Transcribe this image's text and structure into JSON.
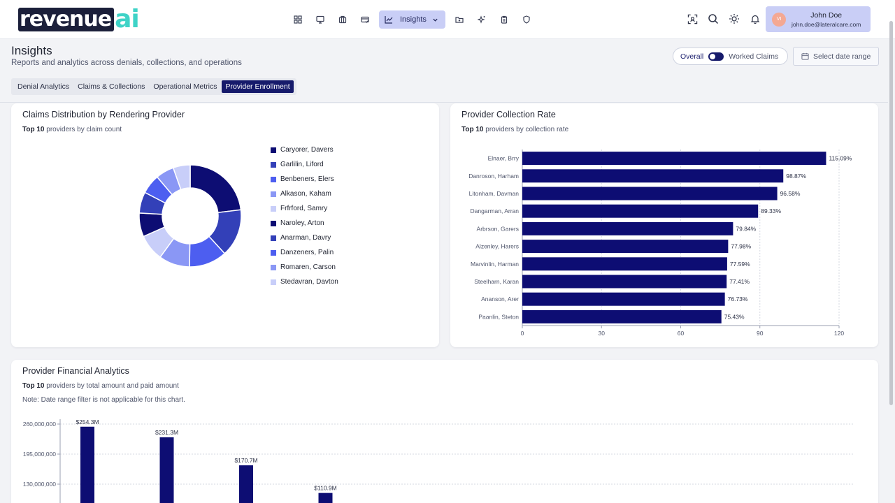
{
  "brand": {
    "logo_main": "revenue",
    "logo_accent": "ai"
  },
  "nav": {
    "icons": [
      "grid-icon",
      "monitor-icon",
      "briefcase-icon",
      "card-icon"
    ],
    "active_label": "Insights",
    "icons_after": [
      "folder-icon",
      "sparkle-icon",
      "clipboard-icon",
      "shield-icon"
    ]
  },
  "tools": [
    "scan-icon",
    "search-icon",
    "sun-icon",
    "bell-icon"
  ],
  "user": {
    "initials": "VI",
    "name": "John Doe",
    "email": "john.doe@lateralcare.com"
  },
  "page": {
    "title": "Insights",
    "subtitle": "Reports and analytics across denials, collections, and operations"
  },
  "toggle": {
    "on_label": "Overall",
    "off_label": "Worked Claims"
  },
  "date_button": "Select date range",
  "tabs": [
    {
      "label": "Denial Analytics",
      "active": false
    },
    {
      "label": "Claims & Collections",
      "active": false
    },
    {
      "label": "Operational Metrics",
      "active": false
    },
    {
      "label": "Provider Enrollment",
      "active": true
    }
  ],
  "cards": {
    "distribution": {
      "title": "Claims Distribution by Rendering Provider",
      "sub_bold": "Top 10",
      "sub_rest": " providers by claim count"
    },
    "collection": {
      "title": "Provider Collection Rate",
      "sub_bold": "Top 10",
      "sub_rest": " providers by collection rate"
    },
    "financial": {
      "title": "Provider Financial Analytics",
      "sub_bold": "Top 10",
      "sub_rest": " providers by total amount and paid amount",
      "note": "Note: Date range filter is not applicable for this chart."
    }
  },
  "colors": {
    "navy": "#0d0d73",
    "palette": [
      "#0d0d73",
      "#3340b8",
      "#4d5ef0",
      "#8a97f5",
      "#c8cef9"
    ]
  },
  "chart_data": [
    {
      "type": "pie",
      "title": "Claims Distribution by Rendering Provider",
      "donut": true,
      "categories": [
        "Caryorer, Davers",
        "Garlilin, Liford",
        "Benbeners, Elers",
        "Alkason, Kaham",
        "Frfrford, Samry",
        "Naroley, Arton",
        "Anarman, Davry",
        "Danzeners, Palin",
        "Romaren, Carson",
        "Stedavran, Davton"
      ],
      "values": [
        23.1,
        15.1,
        12.0,
        9.8,
        8.4,
        7.5,
        6.7,
        6.2,
        5.8,
        5.4
      ],
      "legend": "right"
    },
    {
      "type": "bar",
      "orientation": "horizontal",
      "title": "Provider Collection Rate",
      "categories": [
        "Elnaer, Brry",
        "Danroson, Harham",
        "Litonham, Davman",
        "Dangarman, Arran",
        "Arbrson, Garers",
        "Alzenley, Harers",
        "Marvinlin, Harman",
        "Steelharn, Karan",
        "Ananson, Arer",
        "Paanlin, Steton"
      ],
      "values": [
        115.09,
        98.87,
        96.58,
        89.33,
        79.84,
        77.98,
        77.59,
        77.41,
        76.73,
        75.43
      ],
      "labels": [
        "115.09%",
        "98.87%",
        "96.58%",
        "89.33%",
        "79.84%",
        "77.98%",
        "77.59%",
        "77.41%",
        "76.73%",
        "75.43%"
      ],
      "xlim": [
        0,
        120
      ],
      "xticks": [
        "0",
        "30",
        "60",
        "90",
        "120"
      ],
      "grid": true
    },
    {
      "type": "bar",
      "title": "Provider Financial Analytics",
      "values": [
        254.3,
        231.3,
        170.7,
        110.9
      ],
      "labels": [
        "$254.3M",
        "$231.3M",
        "$170.7M",
        "$110.9M"
      ],
      "y_ticks": [
        "260,000,000",
        "195,000,000",
        "130,000,000"
      ],
      "y_tick_values": [
        260000000,
        195000000,
        130000000
      ],
      "grid": true
    }
  ]
}
